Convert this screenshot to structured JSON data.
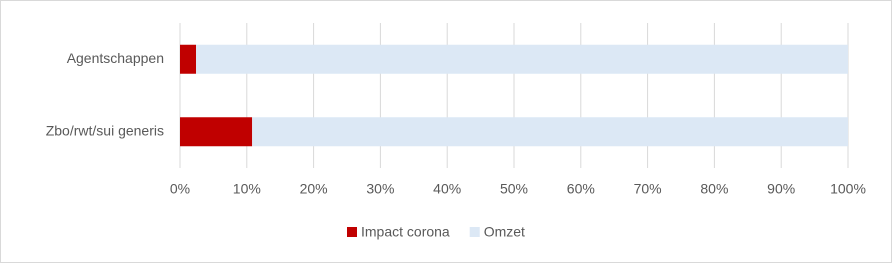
{
  "chart_data": {
    "type": "stacked-bar-horizontal",
    "categories": [
      "Agentschappen",
      "Zbo/rwt/sui generis"
    ],
    "series": [
      {
        "name": "Impact corona",
        "color": "#c00000",
        "values": [
          2.4,
          10.8
        ]
      },
      {
        "name": "Omzet",
        "color": "#dce8f5",
        "values": [
          97.6,
          89.2
        ]
      }
    ],
    "xlim": [
      0,
      100
    ],
    "xticks": [
      {
        "value": 0,
        "label": "0%"
      },
      {
        "value": 10,
        "label": "10%"
      },
      {
        "value": 20,
        "label": "20%"
      },
      {
        "value": 30,
        "label": "30%"
      },
      {
        "value": 40,
        "label": "40%"
      },
      {
        "value": 50,
        "label": "50%"
      },
      {
        "value": 60,
        "label": "60%"
      },
      {
        "value": 70,
        "label": "70%"
      },
      {
        "value": 80,
        "label": "80%"
      },
      {
        "value": 90,
        "label": "90%"
      },
      {
        "value": 100,
        "label": "100%"
      }
    ],
    "grid": true,
    "legend": "bottom"
  }
}
